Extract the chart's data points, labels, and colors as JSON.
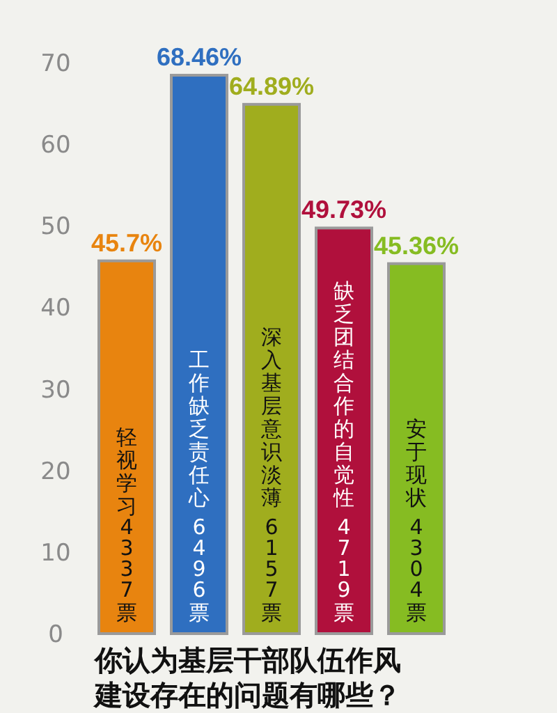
{
  "chart_data": {
    "type": "bar",
    "title": "你认为基层干部队伍作风建设存在的问题有哪些？",
    "categories": [
      "轻视学习4337票",
      "工作缺乏责任心 6496票",
      "深入基层意识淡薄 6157票",
      "缺乏团结合作的自觉性 4719票",
      "安于现状 4304票"
    ],
    "values": [
      45.7,
      68.46,
      64.89,
      49.73,
      45.36
    ],
    "value_labels": [
      "45.7%",
      "68.46%",
      "64.89%",
      "49.73%",
      "45.36%"
    ],
    "colors": [
      "#e8840f",
      "#2f6fc0",
      "#a0ad1e",
      "#b0103c",
      "#86bc22"
    ],
    "ylim": [
      0,
      70
    ],
    "yticks": [
      0,
      10,
      20,
      30,
      40,
      50,
      60,
      70
    ]
  }
}
